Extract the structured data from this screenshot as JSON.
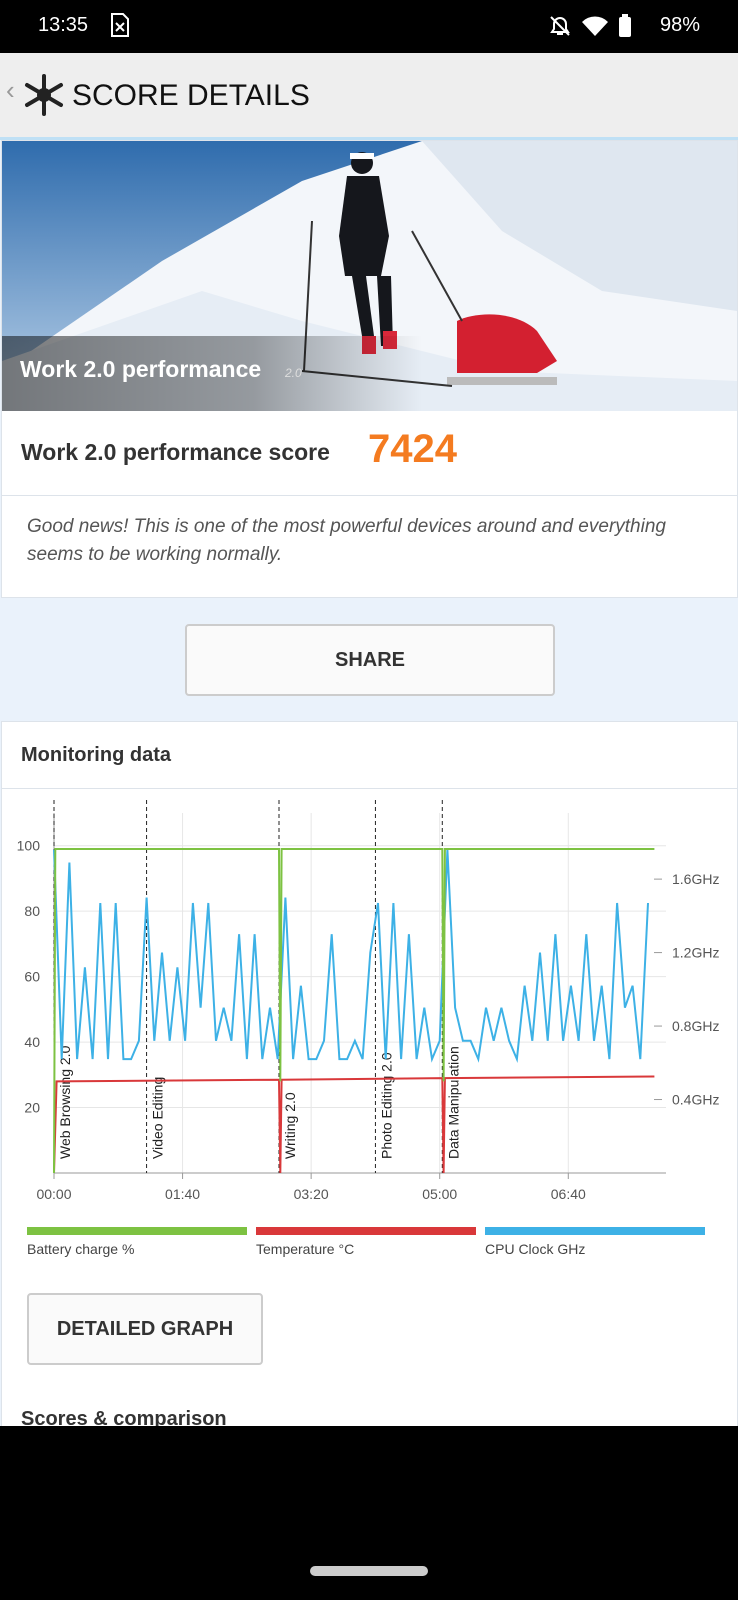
{
  "status_bar": {
    "time": "13:35",
    "battery": "98%"
  },
  "header": {
    "title": "SCORE DETAILS"
  },
  "hero": {
    "title": "Work 2.0 performance",
    "version": "2.0"
  },
  "score": {
    "label": "Work 2.0 performance score",
    "value": 7424
  },
  "message": "Good news! This is one of the most powerful devices around and everything seems to be working normally.",
  "share_button": "SHARE",
  "monitoring": {
    "title": "Monitoring data",
    "chart": {
      "type": "line",
      "xlim": [
        0,
        476
      ],
      "xticks": [
        {
          "value": 0,
          "label": "00:00"
        },
        {
          "value": 100,
          "label": "01:40"
        },
        {
          "value": 200,
          "label": "03:20"
        },
        {
          "value": 300,
          "label": "05:00"
        },
        {
          "value": 400,
          "label": "06:40"
        }
      ],
      "ylim": [
        0,
        110
      ],
      "yticks": [
        20,
        40,
        60,
        80,
        100
      ],
      "y2lim": [
        0,
        1.96
      ],
      "y2ticks": [
        {
          "value": 0.4,
          "label": "0.4GHz"
        },
        {
          "value": 0.8,
          "label": "0.8GHz"
        },
        {
          "value": 1.2,
          "label": "1.2GHz"
        },
        {
          "value": 1.6,
          "label": "1.6GHz"
        }
      ],
      "grid": true,
      "markers": [
        {
          "x": 0,
          "label": "Web Browsing 2.0"
        },
        {
          "x": 72,
          "label": "Video Editing"
        },
        {
          "x": 175,
          "label": "Writing 2.0"
        },
        {
          "x": 250,
          "label": "Photo Editing 2.0"
        },
        {
          "x": 302,
          "label": "Data Manipulation"
        }
      ],
      "series": [
        {
          "name": "Battery charge %",
          "color": "#7dc242",
          "x": [
            0,
            1,
            175,
            176,
            177,
            302,
            303,
            304,
            467
          ],
          "values": [
            0,
            99,
            99,
            28,
            99,
            99,
            28,
            99,
            99
          ]
        },
        {
          "name": "Temperature °C",
          "color": "#d9383a",
          "x": [
            0,
            2,
            175,
            176,
            177,
            302,
            303,
            304,
            467
          ],
          "values": [
            0,
            28,
            28.5,
            0,
            28.5,
            29,
            0,
            29,
            29.5
          ]
        },
        {
          "name": "CPU Clock GHz",
          "color": "#3db1e6",
          "axis": "y2",
          "x": [
            0,
            6,
            12,
            18,
            24,
            30,
            36,
            42,
            48,
            54,
            60,
            66,
            72,
            78,
            84,
            90,
            96,
            102,
            108,
            114,
            120,
            126,
            132,
            138,
            144,
            150,
            156,
            162,
            168,
            174,
            180,
            186,
            192,
            198,
            204,
            210,
            216,
            222,
            228,
            234,
            240,
            246,
            252,
            258,
            264,
            270,
            276,
            282,
            288,
            294,
            300,
            306,
            312,
            318,
            324,
            330,
            336,
            342,
            348,
            354,
            360,
            366,
            372,
            378,
            384,
            390,
            396,
            402,
            408,
            414,
            420,
            426,
            432,
            438,
            444,
            450,
            456,
            462
          ],
          "values": [
            1.76,
            0.62,
            1.69,
            0.62,
            1.12,
            0.62,
            1.47,
            0.62,
            1.47,
            0.62,
            0.62,
            0.72,
            1.5,
            0.72,
            1.2,
            0.72,
            1.12,
            0.72,
            1.47,
            0.9,
            1.47,
            0.72,
            0.9,
            0.72,
            1.3,
            0.62,
            1.3,
            0.62,
            0.9,
            0.62,
            1.5,
            0.62,
            1.02,
            0.62,
            0.62,
            0.72,
            1.3,
            0.62,
            0.62,
            0.72,
            0.62,
            1.2,
            1.47,
            0.62,
            1.47,
            0.62,
            1.3,
            0.62,
            0.9,
            0.62,
            0.72,
            1.76,
            0.9,
            0.72,
            0.72,
            0.62,
            0.9,
            0.72,
            0.9,
            0.72,
            0.62,
            1.02,
            0.72,
            1.2,
            0.72,
            1.3,
            0.72,
            1.02,
            0.72,
            1.3,
            0.72,
            1.02,
            0.62,
            1.47,
            0.9,
            1.02,
            0.62,
            1.47
          ]
        }
      ]
    },
    "button": "DETAILED GRAPH"
  },
  "next_section": "Scores & comparison"
}
